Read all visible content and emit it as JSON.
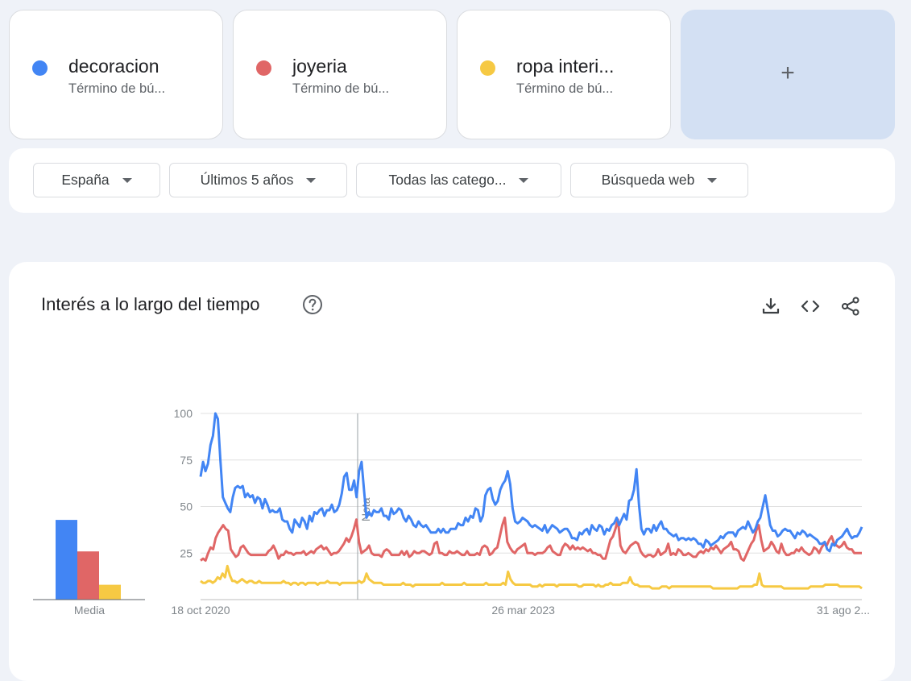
{
  "terms": [
    {
      "name": "decoracion",
      "type": "Término de bú...",
      "color": "#4285f4"
    },
    {
      "name": "joyeria",
      "type": "Término de bú...",
      "color": "#e06666"
    },
    {
      "name": "ropa interi...",
      "type": "Término de bú...",
      "color": "#f6c943"
    }
  ],
  "add_card": {
    "label": "+"
  },
  "filters": {
    "region": "España",
    "period": "Últimos 5 años",
    "category": "Todas las catego...",
    "search_type": "Búsqueda web"
  },
  "chart_section": {
    "title": "Interés a lo largo del tiempo",
    "icons": [
      "help-icon",
      "download-icon",
      "embed-icon",
      "share-icon"
    ]
  },
  "chart_data": [
    {
      "type": "bar",
      "categories": [
        "decoracion",
        "joyeria",
        "ropa interi..."
      ],
      "values": [
        43,
        26,
        8
      ],
      "xlabel": "Media",
      "ylim": [
        0,
        100
      ],
      "colors": [
        "#4285f4",
        "#e06666",
        "#f6c943"
      ]
    },
    {
      "type": "line",
      "x_tick_labels": [
        "18 oct 2020",
        "26 mar 2023",
        "31 ago 2..."
      ],
      "y_ticks": [
        25,
        50,
        75,
        100
      ],
      "ylim": [
        0,
        100
      ],
      "annotation": "Nota",
      "series": [
        {
          "name": "decoracion",
          "color": "#4285f4",
          "values": [
            66,
            74,
            69,
            73,
            83,
            88,
            100,
            97,
            75,
            55,
            52,
            49,
            47,
            55,
            60,
            61,
            60,
            61,
            55,
            57,
            55,
            56,
            52,
            55,
            54,
            49,
            54,
            51,
            47,
            48,
            47,
            47,
            49,
            43,
            42,
            42,
            38,
            36,
            43,
            41,
            39,
            44,
            42,
            38,
            45,
            42,
            47,
            46,
            48,
            49,
            45,
            48,
            48,
            51,
            47,
            48,
            51,
            57,
            66,
            68,
            59,
            59,
            64,
            55,
            69,
            74,
            59,
            44,
            47,
            45,
            48,
            47,
            47,
            49,
            45,
            45,
            43,
            49,
            46,
            47,
            49,
            48,
            44,
            42,
            45,
            43,
            40,
            39,
            42,
            40,
            39,
            40,
            38,
            36,
            36,
            36,
            38,
            36,
            38,
            36,
            36,
            38,
            38,
            38,
            41,
            40,
            40,
            44,
            42,
            45,
            44,
            49,
            48,
            42,
            45,
            56,
            59,
            60,
            54,
            51,
            53,
            59,
            62,
            64,
            69,
            62,
            49,
            42,
            41,
            42,
            44,
            43,
            42,
            40,
            39,
            40,
            39,
            38,
            37,
            40,
            36,
            38,
            40,
            39,
            38,
            36,
            37,
            38,
            38,
            36,
            33,
            33,
            32,
            36,
            35,
            37,
            38,
            35,
            40,
            38,
            37,
            40,
            39,
            35,
            38,
            37,
            40,
            41,
            44,
            40,
            43,
            46,
            43,
            53,
            54,
            59,
            70,
            51,
            38,
            35,
            38,
            38,
            36,
            40,
            37,
            40,
            42,
            38,
            38,
            36,
            35,
            34,
            35,
            32,
            33,
            33,
            32,
            33,
            32,
            33,
            32,
            30,
            30,
            28,
            32,
            31,
            29,
            30,
            31,
            32,
            34,
            33,
            35,
            36,
            36,
            36,
            34,
            37,
            38,
            39,
            38,
            42,
            39,
            36,
            38,
            42,
            44,
            50,
            56,
            48,
            40,
            37,
            37,
            34,
            35,
            37,
            38,
            37,
            37,
            35,
            33,
            36,
            35,
            37,
            36,
            34,
            35,
            34,
            33,
            32,
            30,
            30,
            31,
            27,
            26,
            30,
            29,
            32,
            33,
            34,
            36,
            38,
            35,
            33,
            34,
            34,
            36,
            39
          ]
        },
        {
          "name": "joyeria",
          "color": "#e06666",
          "values": [
            21,
            22,
            21,
            25,
            28,
            27,
            33,
            36,
            38,
            40,
            38,
            37,
            27,
            25,
            23,
            24,
            28,
            29,
            27,
            25,
            24,
            24,
            24,
            24,
            24,
            24,
            24,
            26,
            27,
            29,
            26,
            22,
            24,
            24,
            26,
            25,
            25,
            24,
            25,
            25,
            25,
            26,
            24,
            25,
            26,
            25,
            27,
            28,
            29,
            27,
            28,
            26,
            24,
            25,
            25,
            26,
            28,
            30,
            33,
            31,
            34,
            38,
            43,
            31,
            25,
            26,
            27,
            29,
            25,
            24,
            24,
            24,
            23,
            26,
            27,
            26,
            24,
            24,
            24,
            24,
            26,
            24,
            26,
            23,
            24,
            26,
            25,
            25,
            26,
            26,
            25,
            24,
            25,
            30,
            31,
            25,
            25,
            24,
            24,
            26,
            25,
            25,
            26,
            25,
            24,
            24,
            26,
            24,
            24,
            24,
            25,
            24,
            28,
            29,
            28,
            24,
            25,
            27,
            28,
            34,
            40,
            44,
            31,
            28,
            26,
            25,
            27,
            28,
            29,
            30,
            25,
            25,
            25,
            24,
            25,
            25,
            25,
            26,
            28,
            29,
            26,
            25,
            24,
            24,
            28,
            30,
            29,
            27,
            29,
            27,
            28,
            27,
            28,
            27,
            26,
            27,
            25,
            25,
            24,
            24,
            22,
            22,
            27,
            32,
            34,
            38,
            43,
            29,
            26,
            25,
            27,
            29,
            30,
            31,
            30,
            26,
            24,
            23,
            24,
            24,
            23,
            24,
            27,
            24,
            25,
            26,
            30,
            24,
            25,
            24,
            27,
            26,
            24,
            24,
            25,
            24,
            23,
            23,
            25,
            26,
            25,
            27,
            26,
            28,
            27,
            29,
            27,
            25,
            27,
            28,
            29,
            31,
            27,
            27,
            26,
            22,
            21,
            24,
            27,
            30,
            32,
            37,
            40,
            32,
            26,
            27,
            28,
            31,
            29,
            26,
            25,
            30,
            26,
            24,
            24,
            25,
            25,
            27,
            26,
            28,
            26,
            25,
            24,
            25,
            28,
            27,
            25,
            28,
            30,
            29,
            32,
            34,
            30,
            29,
            28,
            29,
            31,
            28,
            27,
            27,
            25,
            25,
            25,
            25
          ]
        },
        {
          "name": "ropa interi...",
          "color": "#f6c943",
          "values": [
            10,
            9,
            9,
            10,
            10,
            9,
            10,
            12,
            11,
            14,
            12,
            18,
            13,
            10,
            10,
            9,
            10,
            11,
            10,
            9,
            10,
            10,
            9,
            9,
            10,
            9,
            9,
            9,
            9,
            9,
            9,
            9,
            9,
            9,
            10,
            9,
            9,
            8,
            9,
            9,
            8,
            9,
            9,
            8,
            9,
            9,
            9,
            9,
            8,
            9,
            9,
            9,
            10,
            9,
            9,
            9,
            9,
            8,
            9,
            9,
            9,
            9,
            9,
            9,
            9,
            10,
            9,
            10,
            14,
            11,
            10,
            9,
            9,
            9,
            9,
            8,
            8,
            8,
            8,
            8,
            8,
            8,
            8,
            9,
            8,
            8,
            8,
            7,
            8,
            8,
            8,
            8,
            8,
            8,
            8,
            8,
            8,
            8,
            8,
            9,
            8,
            8,
            8,
            8,
            8,
            8,
            8,
            8,
            9,
            8,
            8,
            8,
            8,
            8,
            8,
            8,
            8,
            9,
            8,
            8,
            8,
            8,
            8,
            8,
            9,
            8,
            15,
            11,
            9,
            8,
            8,
            8,
            8,
            8,
            8,
            8,
            7,
            7,
            7,
            8,
            7,
            8,
            8,
            8,
            8,
            8,
            7,
            8,
            8,
            8,
            8,
            8,
            8,
            8,
            8,
            7,
            7,
            8,
            8,
            8,
            8,
            8,
            7,
            8,
            7,
            7,
            8,
            8,
            9,
            8,
            8,
            8,
            8,
            9,
            9,
            9,
            12,
            9,
            8,
            8,
            7,
            7,
            7,
            7,
            7,
            6,
            6,
            6,
            6,
            7,
            7,
            7,
            6,
            7,
            7,
            7,
            7,
            7,
            7,
            7,
            7,
            7,
            7,
            7,
            7,
            7,
            7,
            7,
            7,
            7,
            6,
            6,
            6,
            6,
            6,
            6,
            6,
            6,
            6,
            6,
            6,
            7,
            7,
            7,
            7,
            7,
            7,
            8,
            8,
            14,
            8,
            7,
            7,
            7,
            7,
            7,
            7,
            7,
            7,
            6,
            6,
            6,
            6,
            6,
            6,
            6,
            6,
            6,
            6,
            6,
            7,
            7,
            7,
            7,
            7,
            7,
            8,
            8,
            8,
            8,
            8,
            8,
            7,
            7,
            7,
            7,
            7,
            7,
            7,
            7,
            7,
            6
          ]
        }
      ]
    }
  ]
}
